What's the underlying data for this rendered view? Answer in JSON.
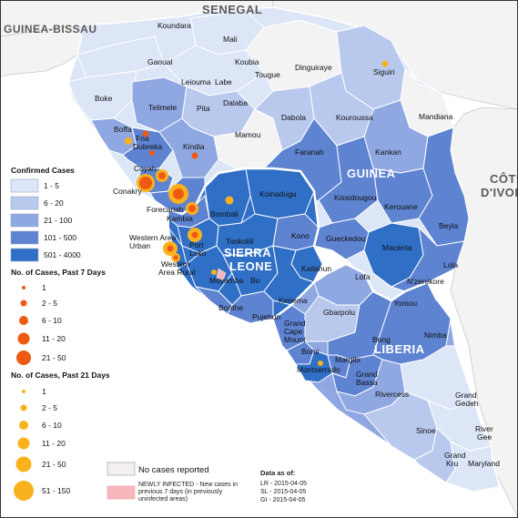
{
  "colors": {
    "sea": "#ffffff",
    "outside": "#f4f4f4",
    "c1": "#dde6f7",
    "c2": "#b9c9ee",
    "c3": "#8fa8e2",
    "c4": "#5e83d1",
    "c5": "#2f6fc6",
    "c21": "#f9b21e",
    "c7": "#ee5a13",
    "none": "#f3efef",
    "newly": "#f6b8bd"
  },
  "countries": {
    "senegal": "SENEGAL",
    "guinea_bissau": "GUINEA-BISSAU",
    "guinea": "GUINEA",
    "cote_divoire_1": "CÔTE",
    "cote_divoire_2": "D'IVOI",
    "sierra_leone_1": "SIERRA",
    "sierra_leone_2": "LEONE",
    "liberia": "LIBERIA"
  },
  "regions": [
    {
      "name": "Koundara",
      "value_class": "outside-label"
    },
    {
      "name": "Mali"
    },
    {
      "name": "Gaoual"
    },
    {
      "name": "Koubia"
    },
    {
      "name": "Tougue"
    },
    {
      "name": "Dinguiraye"
    },
    {
      "name": "Siguiri"
    },
    {
      "name": "Leiouma"
    },
    {
      "name": "Labe"
    },
    {
      "name": "Boke"
    },
    {
      "name": "Telimele"
    },
    {
      "name": "Pita"
    },
    {
      "name": "Dalaba"
    },
    {
      "name": "Mandiana"
    },
    {
      "name": "Dabola"
    },
    {
      "name": "Kouroussa"
    },
    {
      "name": "Boffa"
    },
    {
      "name": "Fria"
    },
    {
      "name": "Dubreka"
    },
    {
      "name": "Kindia"
    },
    {
      "name": "Mamou"
    },
    {
      "name": "Faranah"
    },
    {
      "name": "Kankan"
    },
    {
      "name": "Coyah"
    },
    {
      "name": "Conakry"
    },
    {
      "name": "Forecariah"
    },
    {
      "name": "Kambia"
    },
    {
      "name": "Bombali"
    },
    {
      "name": "Koinadugu"
    },
    {
      "name": "Kissidougou"
    },
    {
      "name": "Kerouane"
    },
    {
      "name": "Beyla"
    },
    {
      "name": "Western Area"
    },
    {
      "name": "Urban"
    },
    {
      "name": "Port"
    },
    {
      "name": "Loko"
    },
    {
      "name": "Tonkolili"
    },
    {
      "name": "Kono"
    },
    {
      "name": "Gueckedou"
    },
    {
      "name": "Macenta"
    },
    {
      "name": "Western"
    },
    {
      "name": "Area Rural"
    },
    {
      "name": "Kailahun"
    },
    {
      "name": "Lofa"
    },
    {
      "name": "Lola"
    },
    {
      "name": "N'zerekore"
    },
    {
      "name": "Moyamba"
    },
    {
      "name": "Bo"
    },
    {
      "name": "Kenema"
    },
    {
      "name": "Bonthe"
    },
    {
      "name": "Pujehun"
    },
    {
      "name": "Yomou"
    },
    {
      "name": "Grand"
    },
    {
      "name": "Cape"
    },
    {
      "name": "Mount"
    },
    {
      "name": "Gbarpolu"
    },
    {
      "name": "Nimba"
    },
    {
      "name": "Bong"
    },
    {
      "name": "Bomi"
    },
    {
      "name": "Margibi"
    },
    {
      "name": "Montserrado"
    },
    {
      "name": "Grand "
    },
    {
      "name": "Bassa"
    },
    {
      "name": "Rivercess"
    },
    {
      "name": "Grand "
    },
    {
      "name": "Gedeh"
    },
    {
      "name": "Sinoe"
    },
    {
      "name": "River"
    },
    {
      "name": "Gee"
    },
    {
      "name": "Grand"
    },
    {
      "name": "Kru"
    },
    {
      "name": "Maryland"
    }
  ],
  "legend": {
    "confirmed_title": "Confirmed Cases",
    "confirmed_classes": [
      "1 - 5",
      "6 - 20",
      "21 - 100",
      "101 - 500",
      "501 - 4000"
    ],
    "past7_title": "No. of Cases, Past 7 Days",
    "past7_classes": [
      "1",
      "2 - 5",
      "6 - 10",
      "11 - 20",
      "21 - 50"
    ],
    "past21_title": "No. of Cases, Past 21 Days",
    "past21_classes": [
      "1",
      "2 - 5",
      "6 - 10",
      "11 - 20",
      "21 - 50",
      "51 - 150"
    ]
  },
  "notes": {
    "no_cases": "No cases reported",
    "newly_1": "NEWLY INFECTED - New cases in",
    "newly_2": "previous 7 days (in previously",
    "newly_3": "uninfected areas)",
    "data_as_of": "Data as of:",
    "lr": "LR - 2015-04-05",
    "sl": "SL - 2015-04-05",
    "gi": "GI - 2015-04-05"
  }
}
